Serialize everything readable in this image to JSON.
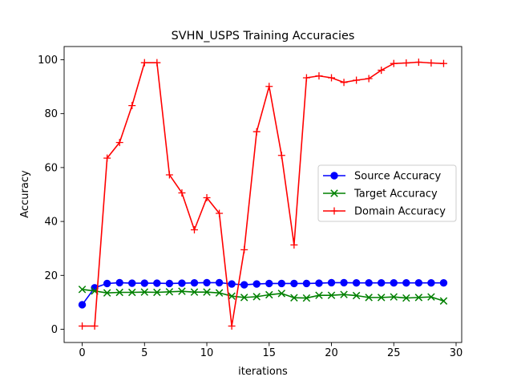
{
  "chart_data": {
    "type": "line",
    "title": "SVHN_USPS Training Accuracies",
    "xlabel": "iterations",
    "ylabel": "Accuracy",
    "xlim": [
      -1.45,
      30.45
    ],
    "ylim": [
      -4.9,
      104.9
    ],
    "xticks": [
      0,
      5,
      10,
      15,
      20,
      25,
      30
    ],
    "yticks": [
      0,
      20,
      40,
      60,
      80,
      100
    ],
    "grid": false,
    "legend_position": "center-right",
    "x": [
      0,
      1,
      2,
      3,
      4,
      5,
      6,
      7,
      8,
      9,
      10,
      11,
      12,
      13,
      14,
      15,
      16,
      17,
      18,
      19,
      20,
      21,
      22,
      23,
      24,
      25,
      26,
      27,
      28,
      29
    ],
    "series": [
      {
        "name": "Source Accuracy",
        "color": "#0000ff",
        "marker": "circle",
        "values": [
          9.1,
          15.4,
          17.0,
          17.3,
          17.1,
          17.1,
          17.1,
          17.0,
          17.1,
          17.2,
          17.3,
          17.3,
          16.8,
          16.5,
          16.8,
          17.0,
          17.0,
          17.0,
          17.0,
          17.1,
          17.3,
          17.3,
          17.2,
          17.2,
          17.2,
          17.2,
          17.2,
          17.2,
          17.2,
          17.2
        ]
      },
      {
        "name": "Target Accuracy",
        "color": "#008000",
        "marker": "x",
        "values": [
          14.8,
          14.2,
          13.5,
          13.7,
          13.7,
          13.8,
          13.7,
          13.9,
          14.1,
          13.8,
          13.8,
          13.5,
          12.3,
          11.8,
          12.1,
          12.8,
          13.3,
          11.7,
          11.6,
          12.6,
          12.6,
          12.9,
          12.5,
          11.8,
          11.8,
          12.0,
          11.6,
          11.8,
          12.0,
          10.5
        ]
      },
      {
        "name": "Domain Accuracy",
        "color": "#ff0000",
        "marker": "plus",
        "values": [
          1.2,
          1.2,
          63.5,
          69.3,
          83.0,
          98.9,
          98.9,
          57.3,
          50.6,
          36.9,
          48.8,
          43.0,
          1.2,
          29.5,
          73.3,
          90.1,
          64.5,
          31.3,
          93.3,
          94.0,
          93.3,
          91.6,
          92.4,
          93.0,
          96.1,
          98.6,
          98.8,
          99.1,
          98.8,
          98.6
        ]
      }
    ]
  }
}
